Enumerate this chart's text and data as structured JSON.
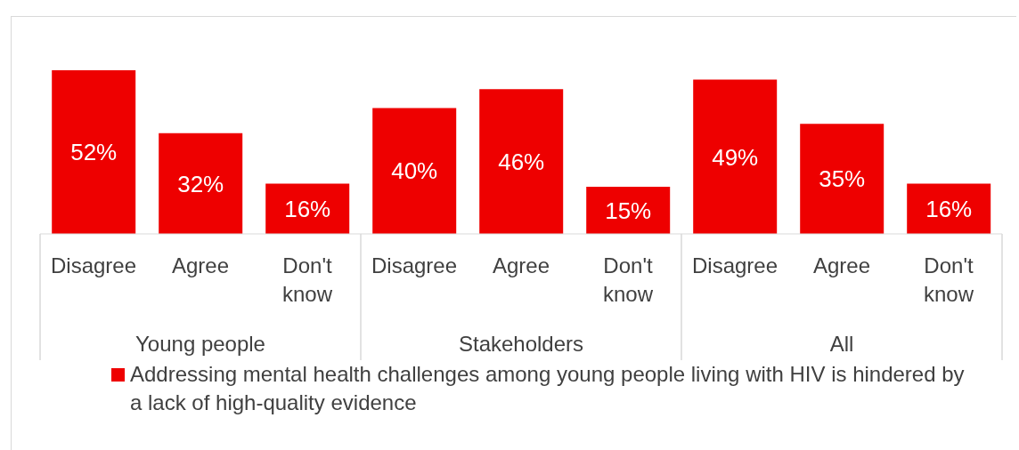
{
  "chart_data": {
    "type": "bar",
    "categories": [
      "Disagree",
      "Agree",
      "Don't know",
      "Disagree",
      "Agree",
      "Don't know",
      "Disagree",
      "Agree",
      "Don't know"
    ],
    "annotations": [
      "Young people",
      "Stakeholders",
      "All"
    ],
    "series": [
      {
        "name": "Addressing mental health challenges among young people living with HIV is hindered by a lack of high-quality evidence",
        "color": "#ee0000",
        "values": [
          52,
          32,
          16,
          40,
          46,
          15,
          49,
          35,
          16
        ],
        "value_labels": [
          "52%",
          "32%",
          "16%",
          "40%",
          "46%",
          "15%",
          "49%",
          "35%",
          "16%"
        ]
      }
    ],
    "tick_labels": "x",
    "legend": "bottom"
  }
}
